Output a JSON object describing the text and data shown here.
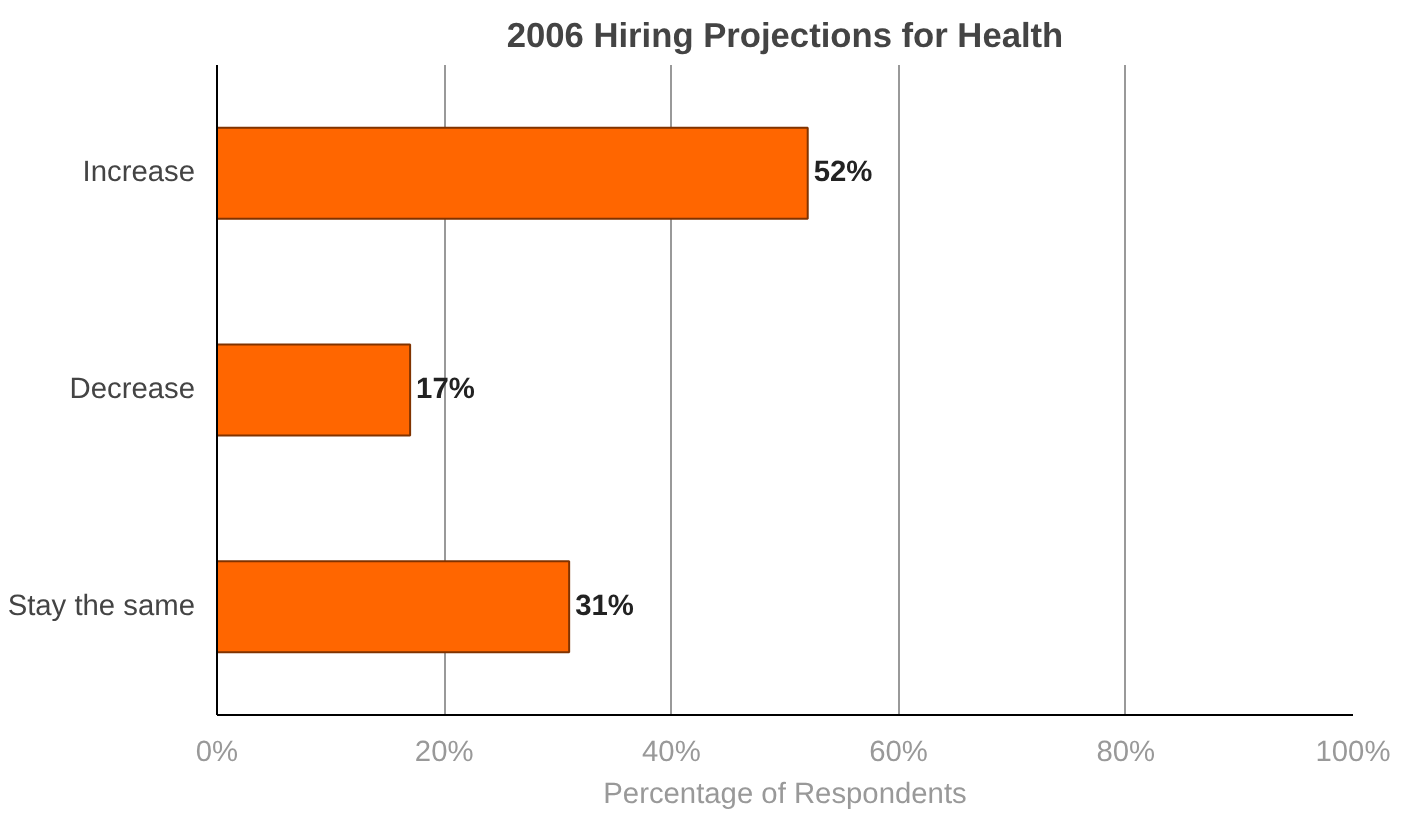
{
  "chart_data": {
    "type": "bar",
    "orientation": "horizontal",
    "title": "2006 Hiring Projections for Health",
    "xlabel": "Percentage of Respondents",
    "categories": [
      "Increase",
      "Decrease",
      "Stay the same"
    ],
    "values": [
      52,
      17,
      31
    ],
    "value_labels": [
      "52%",
      "17%",
      "31%"
    ],
    "color": "#ff6600",
    "xlim": [
      0,
      100
    ],
    "xticks": [
      {
        "value": 0,
        "label": "0%"
      },
      {
        "value": 20,
        "label": "20%"
      },
      {
        "value": 40,
        "label": "40%"
      },
      {
        "value": 60,
        "label": "60%"
      },
      {
        "value": 80,
        "label": "80%"
      },
      {
        "value": 100,
        "label": "100%"
      }
    ],
    "grid": "x"
  }
}
